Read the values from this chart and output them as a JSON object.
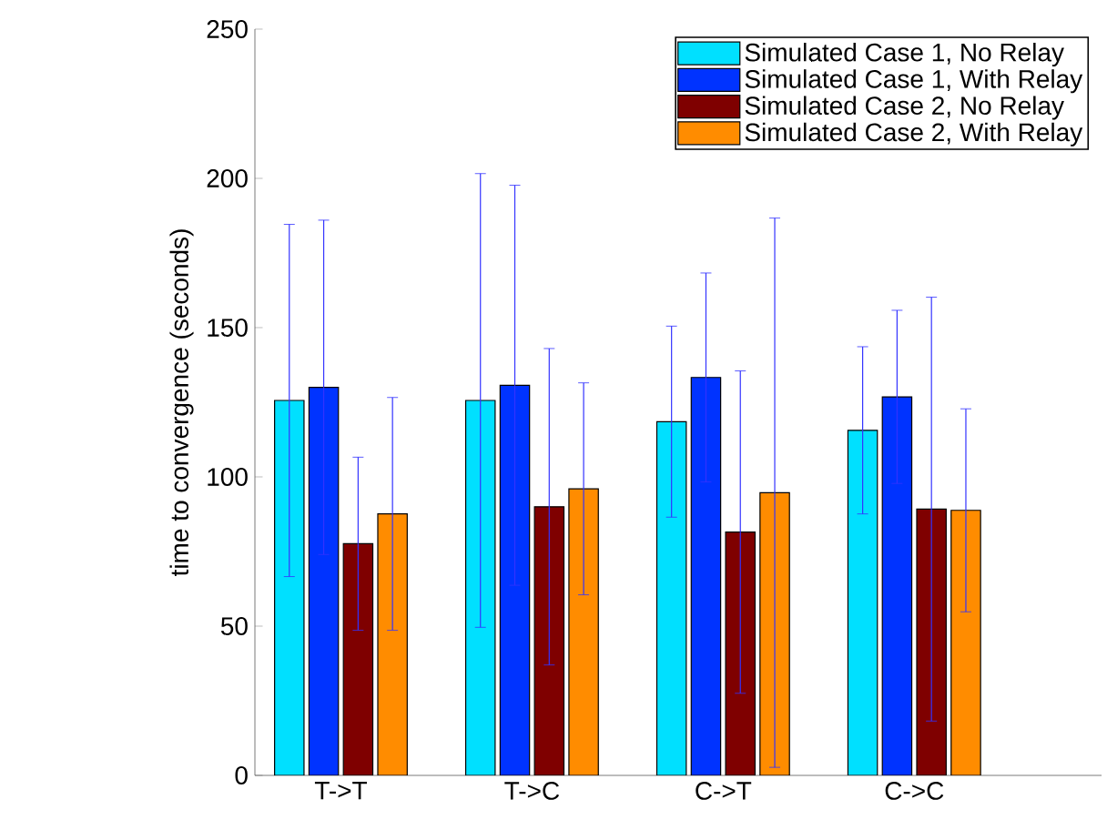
{
  "chart_data": {
    "type": "bar",
    "ylabel": "time to convergence (seconds)",
    "categories": [
      "T->T",
      "T->C",
      "C->T",
      "C->C"
    ],
    "ylim": [
      0,
      250
    ],
    "yticks": [
      0,
      50,
      100,
      150,
      200,
      250
    ],
    "legend": "top right",
    "grid": false,
    "series": [
      {
        "name": "Simulated Case 1, No Relay",
        "color": "#00e0ff",
        "values": [
          125.6,
          125.6,
          118.5,
          115.6
        ],
        "errors": [
          59,
          76,
          32,
          28
        ]
      },
      {
        "name": "Simulated Case 1, With Relay",
        "color": "#0033ff",
        "values": [
          130,
          130.7,
          133.3,
          126.8
        ],
        "errors": [
          56,
          67,
          35,
          29
        ]
      },
      {
        "name": "Simulated Case 2, No Relay",
        "color": "#7f0000",
        "values": [
          77.6,
          90,
          81.5,
          89.2
        ],
        "errors": [
          29,
          53,
          54,
          71
        ]
      },
      {
        "name": "Simulated Case 2, With Relay",
        "color": "#ff8c00",
        "values": [
          87.6,
          96,
          94.7,
          88.8
        ],
        "errors": [
          39,
          35.5,
          92,
          34
        ]
      }
    ]
  }
}
